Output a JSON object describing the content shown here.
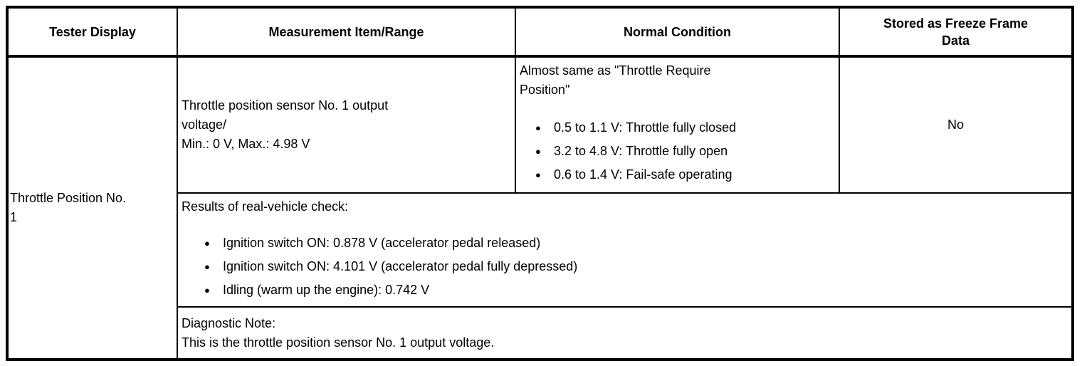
{
  "ui": {
    "bullet_glyph": "●"
  },
  "table": {
    "headers": {
      "tester_display": "Tester Display",
      "measurement": "Measurement Item/Range",
      "normal_condition": "Normal Condition",
      "freeze_frame_lines": [
        "Stored as Freeze Frame",
        "Data"
      ]
    },
    "row": {
      "tester_display_lines": [
        "Throttle Position No.",
        "1"
      ],
      "measurement_lines": [
        "Throttle position sensor No. 1 output",
        "voltage/",
        "Min.: 0 V, Max.: 4.98 V"
      ],
      "normal_condition": {
        "intro_lines": [
          "Almost same as \"Throttle Require",
          "Position\""
        ],
        "bullets": [
          "0.5 to 1.1 V: Throttle fully closed",
          "3.2 to 4.8 V: Throttle fully open",
          "0.6 to 1.4 V: Fail-safe operating"
        ]
      },
      "freeze_frame": "No",
      "results": {
        "intro": "Results of real-vehicle check:",
        "bullets": [
          "Ignition switch ON: 0.878 V (accelerator pedal released)",
          "Ignition switch ON: 4.101 V (accelerator pedal fully depressed)",
          "Idling (warm up the engine): 0.742 V"
        ]
      },
      "diagnostic_note_lines": [
        "Diagnostic Note:",
        "This is the throttle position sensor No. 1 output voltage."
      ]
    },
    "colors": {
      "border": "#000000",
      "background": "#ffffff",
      "text": "#000000"
    }
  }
}
